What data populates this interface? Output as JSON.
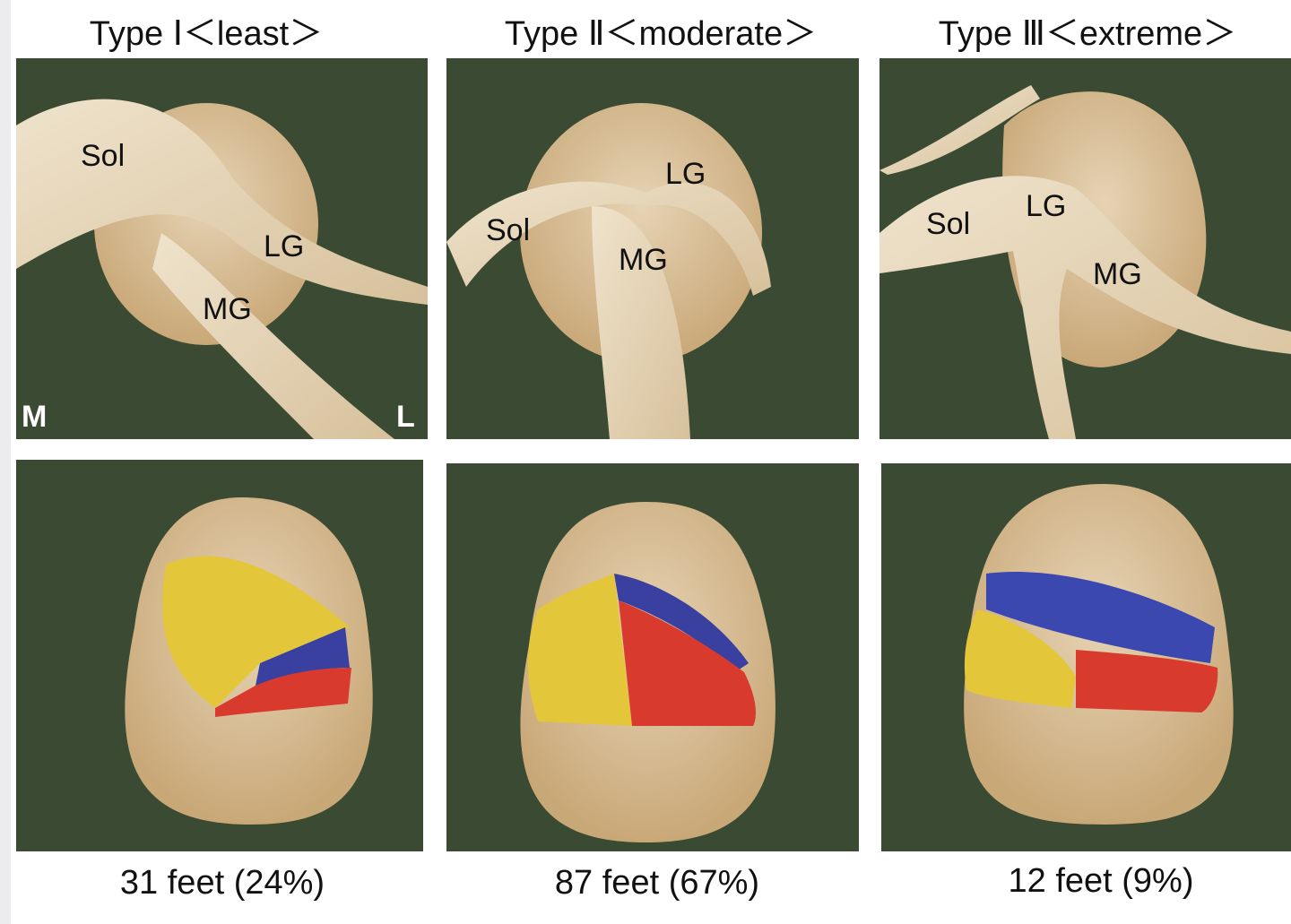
{
  "columns": [
    {
      "title": "Type Ⅰ＜least＞",
      "labels": [
        "Sol",
        "LG",
        "MG",
        "M",
        "L"
      ],
      "caption": "31 feet (24%)"
    },
    {
      "title": "Type Ⅱ＜moderate＞",
      "labels": [
        "LG",
        "Sol",
        "MG"
      ],
      "caption": "87 feet (67%)"
    },
    {
      "title": "Type Ⅲ＜extreme＞",
      "labels": [
        "Sol",
        "LG",
        "MG"
      ],
      "caption": "12 feet (9%)"
    }
  ]
}
